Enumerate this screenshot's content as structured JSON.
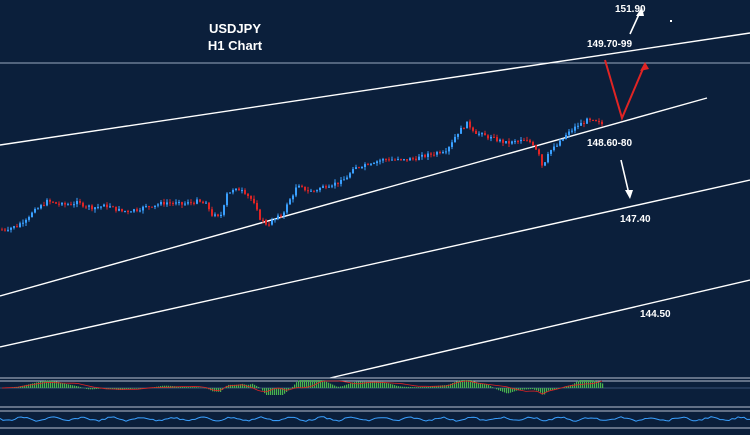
{
  "chart_data": {
    "type": "candlestick",
    "title": "USDJPY",
    "subtitle": "H1 Chart",
    "annotations": [
      {
        "id": "r1",
        "text": "151.90"
      },
      {
        "id": "r2",
        "text": "149.70-99"
      },
      {
        "id": "s1",
        "text": "148.60-80"
      },
      {
        "id": "s2",
        "text": "147.40"
      },
      {
        "id": "s3",
        "text": "144.50"
      }
    ],
    "approx_close_path": [
      {
        "x": 0,
        "y": 147.45
      },
      {
        "x": 15,
        "y": 147.52
      },
      {
        "x": 30,
        "y": 147.78
      },
      {
        "x": 45,
        "y": 148.02
      },
      {
        "x": 60,
        "y": 147.95
      },
      {
        "x": 75,
        "y": 147.99
      },
      {
        "x": 90,
        "y": 147.9
      },
      {
        "x": 105,
        "y": 147.93
      },
      {
        "x": 120,
        "y": 147.82
      },
      {
        "x": 135,
        "y": 147.86
      },
      {
        "x": 150,
        "y": 147.94
      },
      {
        "x": 165,
        "y": 148.0
      },
      {
        "x": 180,
        "y": 147.96
      },
      {
        "x": 195,
        "y": 148.02
      },
      {
        "x": 205,
        "y": 147.95
      },
      {
        "x": 210,
        "y": 147.75
      },
      {
        "x": 218,
        "y": 147.68
      },
      {
        "x": 225,
        "y": 148.2
      },
      {
        "x": 240,
        "y": 148.28
      },
      {
        "x": 250,
        "y": 148.05
      },
      {
        "x": 258,
        "y": 147.68
      },
      {
        "x": 265,
        "y": 147.55
      },
      {
        "x": 280,
        "y": 147.75
      },
      {
        "x": 295,
        "y": 148.32
      },
      {
        "x": 310,
        "y": 148.22
      },
      {
        "x": 325,
        "y": 148.35
      },
      {
        "x": 340,
        "y": 148.42
      },
      {
        "x": 355,
        "y": 148.72
      },
      {
        "x": 370,
        "y": 148.82
      },
      {
        "x": 385,
        "y": 148.88
      },
      {
        "x": 400,
        "y": 148.85
      },
      {
        "x": 415,
        "y": 148.9
      },
      {
        "x": 430,
        "y": 148.98
      },
      {
        "x": 445,
        "y": 149.08
      },
      {
        "x": 455,
        "y": 149.4
      },
      {
        "x": 465,
        "y": 149.6
      },
      {
        "x": 475,
        "y": 149.4
      },
      {
        "x": 490,
        "y": 149.3
      },
      {
        "x": 505,
        "y": 149.2
      },
      {
        "x": 520,
        "y": 149.25
      },
      {
        "x": 530,
        "y": 149.22
      },
      {
        "x": 537,
        "y": 149.0
      },
      {
        "x": 541,
        "y": 148.68
      },
      {
        "x": 545,
        "y": 149.0
      },
      {
        "x": 555,
        "y": 149.15
      },
      {
        "x": 565,
        "y": 149.38
      },
      {
        "x": 575,
        "y": 149.55
      },
      {
        "x": 585,
        "y": 149.66
      },
      {
        "x": 595,
        "y": 149.62
      },
      {
        "x": 600,
        "y": 149.59
      }
    ],
    "trendlines": [
      {
        "name": "channel-upper"
      },
      {
        "name": "channel-mid-support"
      },
      {
        "name": "channel-lower-1"
      },
      {
        "name": "channel-lower-2"
      },
      {
        "name": "horizontal-resistance"
      }
    ],
    "colors": {
      "background": "#0b1f3b",
      "bull": "#3aa0ff",
      "bear": "#e02424",
      "lines": "#ffffff",
      "forecast": "#e02424",
      "osc_bar": "#49b34e"
    },
    "grid": false
  }
}
